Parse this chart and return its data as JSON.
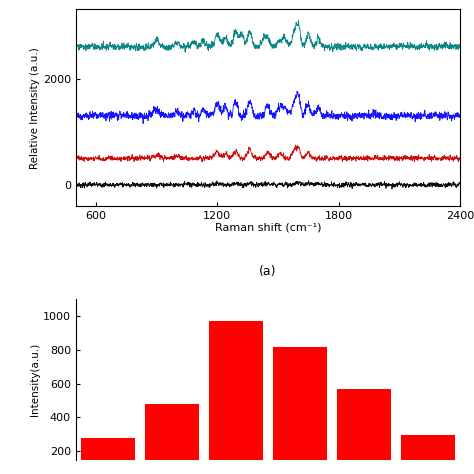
{
  "top_plot": {
    "xlabel": "Raman shift (cm⁻¹)",
    "ylabel": "Relative Intensity (a.u.)",
    "label_a": "(a)",
    "x_range": [
      500,
      2400
    ],
    "x_ticks": [
      600,
      1200,
      1800,
      2400
    ],
    "y_ticks": [
      0,
      2000
    ],
    "ylim": [
      -400,
      3300
    ]
  },
  "bar_plot": {
    "ylabel": "Intensity(a.u.)",
    "bar_color": "#ff0000",
    "bar_values": [
      280,
      480,
      970,
      815,
      570,
      295
    ],
    "y_ticks": [
      200,
      400,
      600,
      800,
      1000
    ],
    "ylim": [
      150,
      1100
    ],
    "bar_width": 0.85
  },
  "background_color": "#ffffff"
}
